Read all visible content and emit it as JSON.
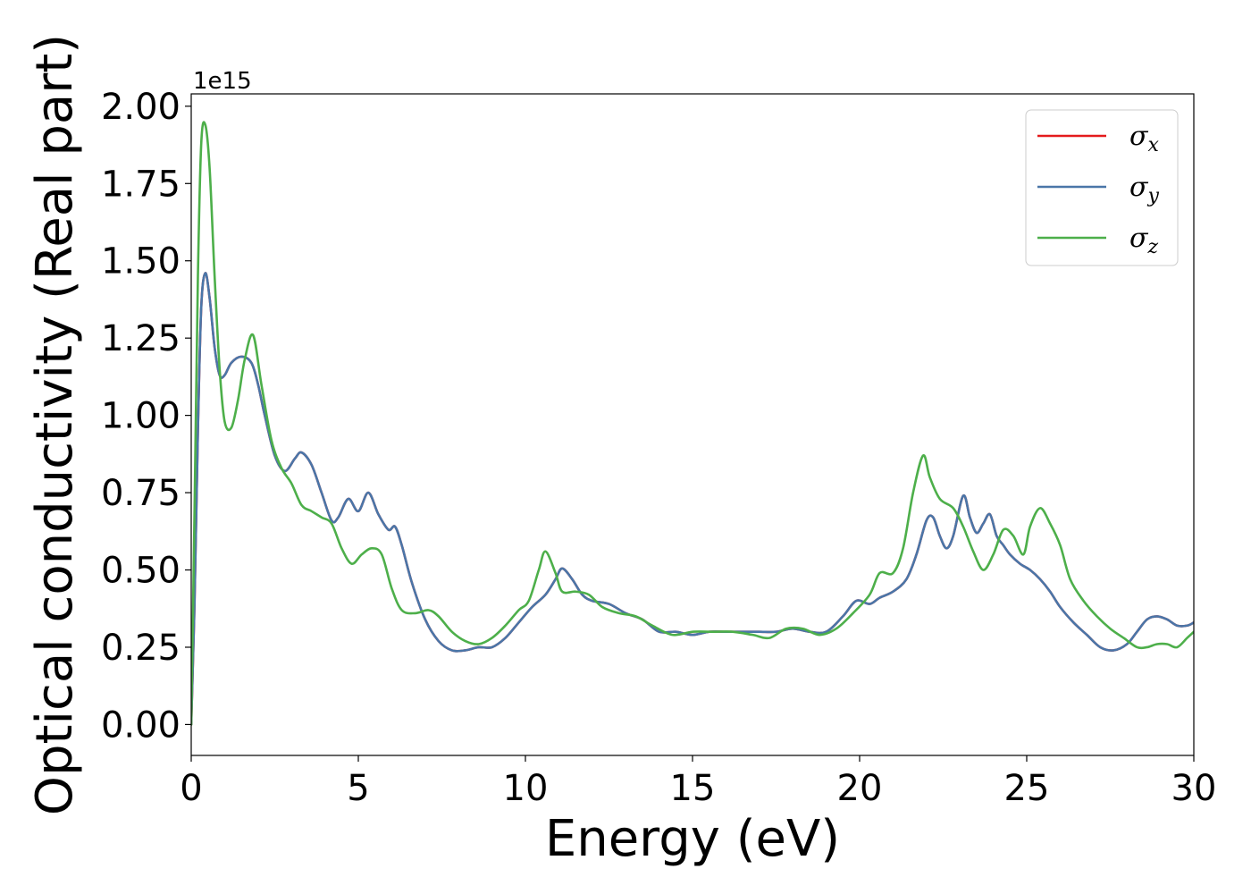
{
  "chart_data": {
    "type": "line",
    "xlabel": "Energy (eV)",
    "ylabel": "Optical conductivity (Real part)",
    "y_offset_text": "1e15",
    "xlim": [
      0,
      30
    ],
    "ylim": [
      -0.1,
      2.04
    ],
    "y_scale_factor": 1000000000000000.0,
    "xticks": [
      0,
      5,
      10,
      15,
      20,
      25,
      30
    ],
    "xtick_labels": [
      "0",
      "5",
      "10",
      "15",
      "20",
      "25",
      "30"
    ],
    "yticks": [
      0.0,
      0.25,
      0.5,
      0.75,
      1.0,
      1.25,
      1.5,
      1.75,
      2.0
    ],
    "ytick_labels": [
      "0.00",
      "0.25",
      "0.50",
      "0.75",
      "1.00",
      "1.25",
      "1.50",
      "1.75",
      "2.00"
    ],
    "grid": false,
    "legend_position": "top-right",
    "series": [
      {
        "name": "σx",
        "legend_base": "σ",
        "legend_sub": "x",
        "color": "#e41a1c",
        "x": [
          0,
          0.1,
          0.2,
          0.3,
          0.42,
          0.55,
          0.7,
          0.85,
          1.0,
          1.2,
          1.5,
          1.8,
          2.0,
          2.2,
          2.5,
          2.8,
          3.1,
          3.3,
          3.6,
          3.9,
          4.2,
          4.4,
          4.7,
          5.0,
          5.3,
          5.6,
          5.9,
          6.1,
          6.3,
          6.6,
          7.0,
          7.4,
          7.8,
          8.2,
          8.6,
          9.0,
          9.4,
          9.8,
          10.2,
          10.6,
          10.9,
          11.1,
          11.4,
          11.7,
          12.0,
          12.5,
          13.0,
          13.5,
          14.0,
          14.5,
          15.0,
          15.5,
          16.0,
          16.5,
          17.0,
          17.5,
          18.0,
          18.5,
          19.0,
          19.5,
          19.9,
          20.3,
          20.6,
          21.0,
          21.4,
          21.7,
          22.0,
          22.2,
          22.4,
          22.6,
          22.8,
          23.1,
          23.3,
          23.5,
          23.7,
          23.9,
          24.1,
          24.3,
          24.5,
          24.8,
          25.1,
          25.4,
          25.7,
          26.0,
          26.4,
          26.8,
          27.2,
          27.6,
          28.0,
          28.3,
          28.6,
          28.9,
          29.2,
          29.5,
          29.8,
          30.0
        ],
        "y": [
          0,
          0.4,
          0.95,
          1.35,
          1.46,
          1.38,
          1.22,
          1.13,
          1.13,
          1.17,
          1.19,
          1.17,
          1.1,
          1.0,
          0.87,
          0.82,
          0.86,
          0.88,
          0.84,
          0.75,
          0.66,
          0.67,
          0.73,
          0.69,
          0.75,
          0.68,
          0.63,
          0.64,
          0.58,
          0.46,
          0.34,
          0.27,
          0.24,
          0.24,
          0.25,
          0.25,
          0.28,
          0.33,
          0.38,
          0.42,
          0.47,
          0.505,
          0.47,
          0.42,
          0.4,
          0.39,
          0.36,
          0.34,
          0.3,
          0.3,
          0.29,
          0.3,
          0.3,
          0.3,
          0.3,
          0.3,
          0.31,
          0.3,
          0.3,
          0.35,
          0.4,
          0.39,
          0.41,
          0.43,
          0.47,
          0.55,
          0.66,
          0.67,
          0.61,
          0.57,
          0.61,
          0.74,
          0.67,
          0.62,
          0.65,
          0.68,
          0.61,
          0.58,
          0.55,
          0.52,
          0.5,
          0.47,
          0.43,
          0.38,
          0.33,
          0.29,
          0.25,
          0.24,
          0.26,
          0.3,
          0.34,
          0.35,
          0.34,
          0.32,
          0.32,
          0.33
        ]
      },
      {
        "name": "σy",
        "legend_base": "σ",
        "legend_sub": "y",
        "color": "#4a76a8",
        "x": [
          0,
          0.1,
          0.2,
          0.3,
          0.42,
          0.55,
          0.7,
          0.85,
          1.0,
          1.2,
          1.5,
          1.8,
          2.0,
          2.2,
          2.5,
          2.8,
          3.1,
          3.3,
          3.6,
          3.9,
          4.2,
          4.4,
          4.7,
          5.0,
          5.3,
          5.6,
          5.9,
          6.1,
          6.3,
          6.6,
          7.0,
          7.4,
          7.8,
          8.2,
          8.6,
          9.0,
          9.4,
          9.8,
          10.2,
          10.6,
          10.9,
          11.1,
          11.4,
          11.7,
          12.0,
          12.5,
          13.0,
          13.5,
          14.0,
          14.5,
          15.0,
          15.5,
          16.0,
          16.5,
          17.0,
          17.5,
          18.0,
          18.5,
          19.0,
          19.5,
          19.9,
          20.3,
          20.6,
          21.0,
          21.4,
          21.7,
          22.0,
          22.2,
          22.4,
          22.6,
          22.8,
          23.1,
          23.3,
          23.5,
          23.7,
          23.9,
          24.1,
          24.3,
          24.5,
          24.8,
          25.1,
          25.4,
          25.7,
          26.0,
          26.4,
          26.8,
          27.2,
          27.6,
          28.0,
          28.3,
          28.6,
          28.9,
          29.2,
          29.5,
          29.8,
          30.0
        ],
        "y": [
          0,
          0.4,
          0.95,
          1.35,
          1.46,
          1.38,
          1.22,
          1.13,
          1.13,
          1.17,
          1.19,
          1.17,
          1.1,
          1.0,
          0.87,
          0.82,
          0.86,
          0.88,
          0.84,
          0.75,
          0.66,
          0.67,
          0.73,
          0.69,
          0.75,
          0.68,
          0.63,
          0.64,
          0.58,
          0.46,
          0.34,
          0.27,
          0.24,
          0.24,
          0.25,
          0.25,
          0.28,
          0.33,
          0.38,
          0.42,
          0.47,
          0.505,
          0.47,
          0.42,
          0.4,
          0.39,
          0.36,
          0.34,
          0.3,
          0.3,
          0.29,
          0.3,
          0.3,
          0.3,
          0.3,
          0.3,
          0.31,
          0.3,
          0.3,
          0.35,
          0.4,
          0.39,
          0.41,
          0.43,
          0.47,
          0.55,
          0.66,
          0.67,
          0.61,
          0.57,
          0.61,
          0.74,
          0.67,
          0.62,
          0.65,
          0.68,
          0.61,
          0.58,
          0.55,
          0.52,
          0.5,
          0.47,
          0.43,
          0.38,
          0.33,
          0.29,
          0.25,
          0.24,
          0.26,
          0.3,
          0.34,
          0.35,
          0.34,
          0.32,
          0.32,
          0.33
        ]
      },
      {
        "name": "σz",
        "legend_base": "σ",
        "legend_sub": "z",
        "color": "#4daf4a",
        "x": [
          0,
          0.1,
          0.2,
          0.3,
          0.42,
          0.55,
          0.7,
          0.85,
          1.0,
          1.2,
          1.4,
          1.6,
          1.85,
          2.1,
          2.4,
          2.7,
          3.0,
          3.3,
          3.6,
          3.9,
          4.2,
          4.5,
          4.8,
          5.1,
          5.4,
          5.7,
          6.0,
          6.3,
          6.7,
          7.1,
          7.4,
          7.8,
          8.2,
          8.6,
          9.0,
          9.4,
          9.8,
          10.1,
          10.4,
          10.6,
          10.9,
          11.1,
          11.5,
          11.9,
          12.3,
          12.8,
          13.3,
          13.8,
          14.4,
          15.0,
          15.6,
          16.2,
          16.8,
          17.3,
          17.8,
          18.3,
          18.8,
          19.3,
          19.8,
          20.3,
          20.6,
          21.0,
          21.3,
          21.6,
          21.9,
          22.1,
          22.4,
          22.8,
          23.1,
          23.4,
          23.7,
          24.0,
          24.3,
          24.6,
          24.9,
          25.1,
          25.4,
          25.7,
          26.0,
          26.3,
          26.7,
          27.1,
          27.5,
          27.9,
          28.3,
          28.6,
          28.9,
          29.2,
          29.5,
          29.8,
          30.0
        ],
        "y": [
          0,
          0.7,
          1.45,
          1.88,
          1.94,
          1.8,
          1.45,
          1.15,
          0.98,
          0.96,
          1.05,
          1.18,
          1.26,
          1.1,
          0.92,
          0.83,
          0.78,
          0.71,
          0.69,
          0.67,
          0.65,
          0.57,
          0.52,
          0.55,
          0.57,
          0.55,
          0.44,
          0.37,
          0.36,
          0.37,
          0.35,
          0.3,
          0.27,
          0.26,
          0.28,
          0.32,
          0.37,
          0.4,
          0.5,
          0.56,
          0.49,
          0.43,
          0.43,
          0.42,
          0.38,
          0.36,
          0.35,
          0.32,
          0.29,
          0.3,
          0.3,
          0.3,
          0.29,
          0.28,
          0.31,
          0.31,
          0.29,
          0.31,
          0.36,
          0.42,
          0.49,
          0.49,
          0.57,
          0.75,
          0.87,
          0.8,
          0.73,
          0.7,
          0.64,
          0.56,
          0.5,
          0.55,
          0.63,
          0.61,
          0.55,
          0.64,
          0.7,
          0.65,
          0.58,
          0.47,
          0.4,
          0.35,
          0.31,
          0.28,
          0.25,
          0.25,
          0.26,
          0.26,
          0.25,
          0.28,
          0.3
        ]
      }
    ]
  }
}
